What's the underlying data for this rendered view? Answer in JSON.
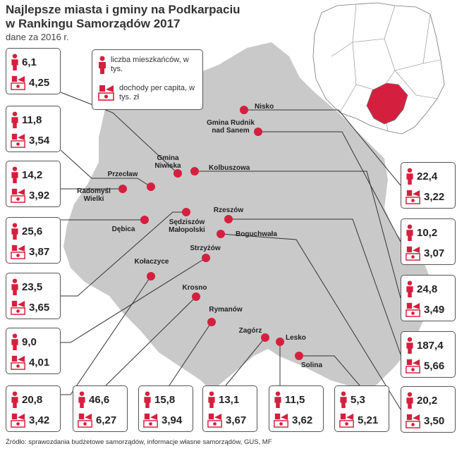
{
  "title_line1": "Najlepsze miasta i gminy na Podkarpaciu",
  "title_line2": "w Rankingu Samorządów 2017",
  "subtitle": "dane za 2016 r.",
  "source": "Źródło: sprawozdania budżetowe samorządów, informacje własne samorządów, GUS, MF",
  "legend": {
    "residents": "liczba mieszkańców, w tys.",
    "income": "dochody per capita, w tys. zł"
  },
  "colors": {
    "marker": "#d4203e",
    "region": "#c9c9c9",
    "highlight": "#d4203e"
  },
  "icons": {
    "residents": "person-icon",
    "income": "money-hand-icon"
  },
  "places": [
    {
      "id": "nisko",
      "name_lines": [
        "Nisko"
      ],
      "residents": "22,4",
      "income": "3,22"
    },
    {
      "id": "rudnik",
      "name_lines": [
        "Gmina Rudnik",
        "nad Sanem"
      ],
      "residents": "10,2",
      "income": "3,07"
    },
    {
      "id": "kolbuszowa",
      "name_lines": [
        "Kolbuszowa"
      ],
      "residents": "24,8",
      "income": "3,49"
    },
    {
      "id": "rzeszow",
      "name_lines": [
        "Rzeszów"
      ],
      "residents": "187,4",
      "income": "5,66"
    },
    {
      "id": "boguchwala",
      "name_lines": [
        "Boguchwała"
      ],
      "residents": "20,2",
      "income": "3,50"
    },
    {
      "id": "niwiska",
      "name_lines": [
        "Gmina",
        "Niwiska"
      ],
      "residents": "6,1",
      "income": "4,25"
    },
    {
      "id": "przeclaw",
      "name_lines": [
        "Przecław"
      ],
      "residents": "11,8",
      "income": "3,54"
    },
    {
      "id": "radomysl",
      "name_lines": [
        "Radomyśl",
        "Wielki"
      ],
      "residents": "14,2",
      "income": "3,92"
    },
    {
      "id": "debica",
      "name_lines": [
        "Dębica"
      ],
      "residents": "25,6",
      "income": "3,87"
    },
    {
      "id": "sedziszow",
      "name_lines": [
        "Sędziszów",
        "Małopolski"
      ],
      "residents": "23,5",
      "income": "3,65"
    },
    {
      "id": "strzyzow",
      "name_lines": [
        "Strzyżów"
      ],
      "residents": "9,0",
      "income": "4,01"
    },
    {
      "id": "kolaczyce",
      "name_lines": [
        "Kołaczyce"
      ],
      "residents": "20,8",
      "income": "3,42"
    },
    {
      "id": "krosno",
      "name_lines": [
        "Krosno"
      ],
      "residents": "46,6",
      "income": "6,27"
    },
    {
      "id": "rymanow",
      "name_lines": [
        "Rymanów"
      ],
      "residents": "15,8",
      "income": "3,94"
    },
    {
      "id": "zagorz",
      "name_lines": [
        "Zagórz"
      ],
      "residents": "13,1",
      "income": "3,67"
    },
    {
      "id": "lesko",
      "name_lines": [
        "Lesko"
      ],
      "residents": "11,5",
      "income": "3,62"
    },
    {
      "id": "solina",
      "name_lines": [
        "Solina"
      ],
      "residents": "5,3",
      "income": "5,21"
    }
  ]
}
